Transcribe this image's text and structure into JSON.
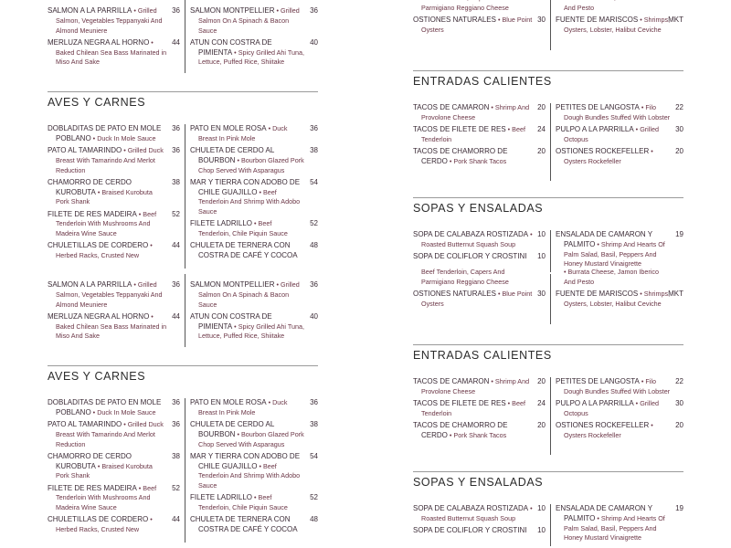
{
  "colors": {
    "name": "#3b2b36",
    "description": "#6b3646",
    "rule": "#9a9a9a"
  },
  "left_page": {
    "seafood_tail": {
      "left": [
        {
          "name": "SALMON A LA PARRILLA",
          "desc": "Grilled Salmon, Vegetables Teppanyaki And Almond Meuniere",
          "price": "36"
        },
        {
          "name": "MERLUZA NEGRA AL HORNO",
          "desc": "Baked Chilean Sea Bass Marinated in Miso And Sake",
          "price": "44"
        }
      ],
      "right": [
        {
          "name": "SALMON MONTPELLIER",
          "desc": "Grilled Salmon On A Spinach & Bacon Sauce",
          "price": "36"
        },
        {
          "name": "ATUN CON COSTRA DE PIMIENTA",
          "desc": "Spicy Grilled Ahi Tuna, Lettuce, Puffed Rice, Shiitake",
          "price": "40"
        }
      ]
    },
    "aves": {
      "title": "AVES Y CARNES",
      "left": [
        {
          "name": "DOBLADITAS DE PATO EN MOLE POBLANO",
          "desc": "Duck In Mole Sauce",
          "price": "36"
        },
        {
          "name": "PATO AL TAMARINDO",
          "desc": "Grilled Duck Breast With Tamarindo And Merlot Reduction",
          "price": "36"
        },
        {
          "name": "CHAMORRO DE CERDO KUROBUTA",
          "desc": "Braised Kurobuta Pork Shank",
          "price": "38"
        },
        {
          "name": "FILETE DE RES MADEIRA",
          "desc": "Beef Tenderloin With Mushrooms And Madeira Wine Sauce",
          "price": "52"
        },
        {
          "name": "CHULETILLAS DE CORDERO",
          "desc": "Herbed Racks, Crusted New",
          "price": "44"
        }
      ],
      "right": [
        {
          "name": "PATO EN MOLE ROSA",
          "desc": "Duck Breast In Pink Mole",
          "price": "36"
        },
        {
          "name": "CHULETA DE CERDO AL BOURBON",
          "desc": "Bourbon Glazed Pork Chop Served With Asparagus",
          "price": "38"
        },
        {
          "name": "MAR Y TIERRA CON ADOBO DE CHILE GUAJILLO",
          "desc": "Beef Tenderloin And Shrimp With Adobo Sauce",
          "price": "54"
        },
        {
          "name": "FILETE LADRILLO",
          "desc": "Beef Tenderloin, Chile Piquin Sauce",
          "price": "52"
        },
        {
          "name": "CHULETA DE TERNERA CON COSTRA DE CAFÉ Y COCOA",
          "desc": "",
          "price": "48"
        }
      ]
    }
  },
  "right_page": {
    "cold_tail": {
      "left_partial": [
        "Beef Tenderloin, Capers And",
        "Parmigiano Reggiano Cheese"
      ],
      "right_partial": [
        "• Burrata Cheese, Jamon Iberico",
        "And Pesto"
      ],
      "left": [
        {
          "name": "OSTIONES NATURALES",
          "desc": "Blue Point Oysters",
          "price": "30"
        }
      ],
      "right": [
        {
          "name": "FUENTE DE MARISCOS",
          "desc": "Shrimps, Oysters, Lobster, Halibut Ceviche",
          "price": "MKT"
        }
      ]
    },
    "entradas": {
      "title": "ENTRADAS CALIENTES",
      "left": [
        {
          "name": "TACOS DE CAMARON",
          "desc": "Shrimp And Provolone Cheese",
          "price": "20"
        },
        {
          "name": "TACOS DE FILETE DE RES",
          "desc": "Beef Tenderloin",
          "price": "24"
        },
        {
          "name": "TACOS DE CHAMORRO DE CERDO",
          "desc": "Pork Shank Tacos",
          "price": "20"
        }
      ],
      "right": [
        {
          "name": "PETITES DE LANGOSTA",
          "desc": "Filo Dough Bundles Stuffed With Lobster",
          "price": "22"
        },
        {
          "name": "PULPO A LA PARRILLA",
          "desc": "Grilled Octopus",
          "price": "30"
        },
        {
          "name": "OSTIONES ROCKEFELLER",
          "desc": "Oysters Rockefeller",
          "price": "20"
        }
      ]
    },
    "sopas": {
      "title": "SOPAS Y ENSALADAS",
      "left": [
        {
          "name": "SOPA DE CALABAZA ROSTIZADA",
          "desc": "Roasted Butternut Squash Soup",
          "price": "10"
        },
        {
          "name": "SOPA DE COLIFLOR Y CROSTINI",
          "desc": "",
          "price": "10"
        }
      ],
      "right": [
        {
          "name": "ENSALADA DE CAMARON Y PALMITO",
          "desc": "Shrimp And Hearts Of Palm Salad, Basil, Peppers And Honey Mustard Vinaigrette",
          "price": "19"
        }
      ]
    }
  }
}
